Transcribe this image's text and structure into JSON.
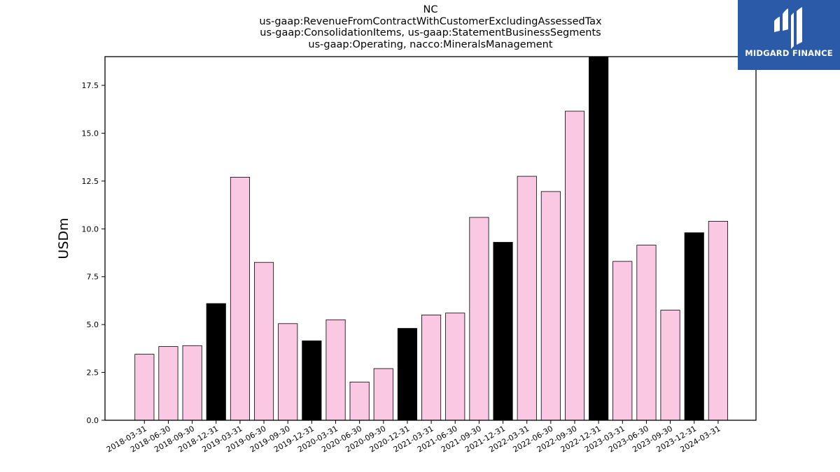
{
  "header": {
    "title_lines": [
      "NC",
      "us-gaap:RevenueFromContractWithCustomerExcludingAssessedTax",
      "us-gaap:ConsolidationItems, us-gaap:StatementBusinessSegments",
      "us-gaap:Operating, nacco:MineralsManagement"
    ]
  },
  "logo": {
    "text": "MIDGARD FINANCE",
    "color": "#2b5aa9"
  },
  "chart_data": {
    "type": "bar",
    "title": "NC\nus-gaap:RevenueFromContractWithCustomerExcludingAssessedTax\nus-gaap:ConsolidationItems, us-gaap:StatementBusinessSegments\nus-gaap:Operating, nacco:MineralsManagement",
    "xlabel": "",
    "ylabel": "USDm",
    "ylim": [
      0,
      19
    ],
    "yticks": [
      "0.0",
      "2.5",
      "5.0",
      "7.5",
      "10.0",
      "12.5",
      "15.0",
      "17.5"
    ],
    "grid": false,
    "categories": [
      "2018-03-31",
      "2018-06-30",
      "2018-09-30",
      "2018-12-31",
      "2019-03-31",
      "2019-06-30",
      "2019-09-30",
      "2019-12-31",
      "2020-03-31",
      "2020-06-30",
      "2020-09-30",
      "2020-12-31",
      "2021-03-31",
      "2021-06-30",
      "2021-09-30",
      "2021-12-31",
      "2022-03-31",
      "2022-06-30",
      "2022-09-30",
      "2022-12-31",
      "2023-03-31",
      "2023-06-30",
      "2023-09-30",
      "2023-12-31",
      "2024-03-31"
    ],
    "values": [
      3.45,
      3.85,
      3.9,
      6.1,
      12.7,
      8.25,
      5.05,
      4.15,
      5.25,
      2.0,
      2.7,
      4.8,
      5.5,
      5.6,
      10.6,
      9.3,
      12.75,
      11.95,
      16.15,
      19.0,
      8.3,
      9.15,
      5.75,
      9.8,
      10.4
    ],
    "colors": {
      "quarter": "#fbc8e3",
      "year_end": "#000000",
      "edge": "#000000"
    }
  }
}
